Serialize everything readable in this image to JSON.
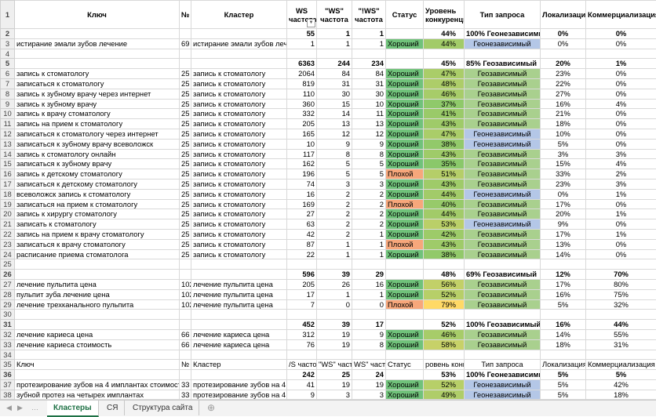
{
  "rows": [
    {
      "n": "1",
      "header": true,
      "cells": [
        "Ключ",
        "№",
        "Кластер",
        "WS частота",
        "\"WS\" частота",
        "\"!WS\" частота",
        "Статус",
        "Уровень конкуренции",
        "Тип запроса",
        "Локализация",
        "Коммерциализация"
      ]
    },
    {
      "n": "2",
      "bold": true,
      "cells": [
        null,
        null,
        null,
        55,
        1,
        1,
        null,
        "44%",
        "100% Геонезависимый",
        "0%",
        "0%"
      ]
    },
    {
      "n": "3",
      "cells": [
        "истирание эмали зубов лечение",
        69,
        "истирание эмали зубов лече",
        1,
        1,
        1,
        "Хороший",
        "44%",
        "Геонезависимый",
        "0%",
        "0%"
      ]
    },
    {
      "n": "4"
    },
    {
      "n": "5",
      "bold": true,
      "cells": [
        null,
        null,
        null,
        6363,
        244,
        234,
        null,
        "45%",
        "85% Геозависимый",
        "20%",
        "1%"
      ]
    },
    {
      "n": "6",
      "cells": [
        "запись к стоматологу",
        25,
        "запись к стоматологу",
        2064,
        84,
        84,
        "Хороший",
        "47%",
        "Геозависимый",
        "23%",
        "0%"
      ]
    },
    {
      "n": "7",
      "cells": [
        "записаться к стоматологу",
        25,
        "запись к стоматологу",
        819,
        31,
        31,
        "Хороший",
        "48%",
        "Геозависимый",
        "22%",
        "0%"
      ]
    },
    {
      "n": "8",
      "cells": [
        "запись к зубному врачу через интернет",
        25,
        "запись к стоматологу",
        110,
        30,
        30,
        "Хороший",
        "46%",
        "Геозависимый",
        "27%",
        "0%"
      ]
    },
    {
      "n": "9",
      "cells": [
        "запись к зубному врачу",
        25,
        "запись к стоматологу",
        360,
        15,
        10,
        "Хороший",
        "37%",
        "Геозависимый",
        "16%",
        "4%"
      ]
    },
    {
      "n": "10",
      "cells": [
        "запись к врачу стоматологу",
        25,
        "запись к стоматологу",
        332,
        14,
        11,
        "Хороший",
        "41%",
        "Геозависимый",
        "21%",
        "0%"
      ]
    },
    {
      "n": "11",
      "cells": [
        "запись на прием к стоматологу",
        25,
        "запись к стоматологу",
        205,
        13,
        13,
        "Хороший",
        "43%",
        "Геозависимый",
        "18%",
        "0%"
      ]
    },
    {
      "n": "12",
      "cells": [
        "записаться к стоматологу через интернет",
        25,
        "запись к стоматологу",
        165,
        12,
        12,
        "Хороший",
        "47%",
        "Геонезависимый",
        "10%",
        "0%"
      ]
    },
    {
      "n": "13",
      "cells": [
        "записаться к зубному врачу всеволожск",
        25,
        "запись к стоматологу",
        10,
        9,
        9,
        "Хороший",
        "38%",
        "Геонезависимый",
        "5%",
        "0%"
      ]
    },
    {
      "n": "14",
      "cells": [
        "запись к стоматологу онлайн",
        25,
        "запись к стоматологу",
        117,
        8,
        8,
        "Хороший",
        "43%",
        "Геозависимый",
        "3%",
        "3%"
      ]
    },
    {
      "n": "15",
      "cells": [
        "записаться к зубному врачу",
        25,
        "запись к стоматологу",
        162,
        5,
        5,
        "Хороший",
        "35%",
        "Геозависимый",
        "15%",
        "4%"
      ]
    },
    {
      "n": "16",
      "cells": [
        "запись к детскому стоматологу",
        25,
        "запись к стоматологу",
        196,
        5,
        5,
        "Плохой",
        "51%",
        "Геозависимый",
        "33%",
        "2%"
      ]
    },
    {
      "n": "17",
      "cells": [
        "записаться к детскому стоматологу",
        25,
        "запись к стоматологу",
        74,
        3,
        3,
        "Хороший",
        "43%",
        "Геозависимый",
        "23%",
        "3%"
      ]
    },
    {
      "n": "18",
      "cells": [
        "всеволожск запись к стоматологу",
        25,
        "запись к стоматологу",
        16,
        2,
        2,
        "Хороший",
        "44%",
        "Геонезависимый",
        "0%",
        "1%"
      ]
    },
    {
      "n": "19",
      "cells": [
        "записаться на прием к стоматологу",
        25,
        "запись к стоматологу",
        169,
        2,
        2,
        "Плохой",
        "40%",
        "Геозависимый",
        "17%",
        "0%"
      ]
    },
    {
      "n": "20",
      "cells": [
        "запись к хирургу стоматологу",
        25,
        "запись к стоматологу",
        27,
        2,
        2,
        "Хороший",
        "44%",
        "Геозависимый",
        "20%",
        "1%"
      ]
    },
    {
      "n": "21",
      "cells": [
        "записать к стоматологу",
        25,
        "запись к стоматологу",
        63,
        2,
        2,
        "Хороший",
        "53%",
        "Геонезависимый",
        "9%",
        "0%"
      ]
    },
    {
      "n": "22",
      "cells": [
        "запись на прием к врачу стоматологу",
        25,
        "запись к стоматологу",
        42,
        2,
        1,
        "Хороший",
        "42%",
        "Геозависимый",
        "17%",
        "1%"
      ]
    },
    {
      "n": "23",
      "cells": [
        "записаться к врачу стоматологу",
        25,
        "запись к стоматологу",
        87,
        1,
        1,
        "Плохой",
        "43%",
        "Геозависимый",
        "13%",
        "0%"
      ]
    },
    {
      "n": "24",
      "cells": [
        "расписание приема стоматолога",
        25,
        "запись к стоматологу",
        22,
        1,
        1,
        "Хороший",
        "38%",
        "Геозависимый",
        "14%",
        "0%"
      ]
    },
    {
      "n": "25"
    },
    {
      "n": "26",
      "bold": true,
      "cells": [
        null,
        null,
        null,
        596,
        39,
        29,
        null,
        "48%",
        "69% Геозависимый",
        "12%",
        "70%"
      ]
    },
    {
      "n": "27",
      "cells": [
        "лечение пульпита цена",
        102,
        "лечение пульпита цена",
        205,
        26,
        16,
        "Хороший",
        "56%",
        "Геозависимый",
        "17%",
        "80%"
      ]
    },
    {
      "n": "28",
      "cells": [
        "пульпит зуба лечение цена",
        102,
        "лечение пульпита цена",
        17,
        1,
        1,
        "Хороший",
        "52%",
        "Геозависимый",
        "16%",
        "75%"
      ]
    },
    {
      "n": "29",
      "cells": [
        "лечение трехканального пульпита",
        102,
        "лечение пульпита цена",
        7,
        0,
        0,
        "Плохой",
        "79%",
        "Геозависимый",
        "5%",
        "32%"
      ]
    },
    {
      "n": "30"
    },
    {
      "n": "31",
      "bold": true,
      "cells": [
        null,
        null,
        null,
        452,
        39,
        17,
        null,
        "52%",
        "100% Геозависимый",
        "16%",
        "44%"
      ]
    },
    {
      "n": "32",
      "cells": [
        "лечение кариеса цена",
        66,
        "лечение кариеса цена",
        312,
        19,
        9,
        "Хороший",
        "46%",
        "Геозависимый",
        "14%",
        "55%"
      ]
    },
    {
      "n": "33",
      "cells": [
        "лечение кариеса стоимость",
        66,
        "лечение кариеса цена",
        76,
        19,
        8,
        "Хороший",
        "58%",
        "Геозависимый",
        "18%",
        "31%"
      ]
    },
    {
      "n": "34"
    },
    {
      "n": "35",
      "cells": [
        "Ключ",
        "№",
        "Кластер",
        "/S частота",
        "\"WS\" частота",
        "WS\" частота",
        "Статус",
        "ровень конкурен",
        "Тип запроса",
        "Локализация",
        "Коммерциализация"
      ]
    },
    {
      "n": "36",
      "bold": true,
      "cells": [
        null,
        null,
        null,
        242,
        25,
        24,
        null,
        "53%",
        "100% Геонезависимый",
        "5%",
        "5%"
      ]
    },
    {
      "n": "37",
      "cells": [
        "протезирование зубов на 4 имплантах стоимость",
        33,
        "протезирование зубов на 4 и",
        41,
        19,
        19,
        "Хороший",
        "52%",
        "Геонезависимый",
        "5%",
        "42%"
      ]
    },
    {
      "n": "38",
      "cells": [
        "зубной протез на четырех имплантах",
        33,
        "протезирование зубов на 4 и",
        9,
        3,
        3,
        "Хороший",
        "49%",
        "Геонезависимый",
        "5%",
        "18%"
      ]
    }
  ],
  "tabs": [
    "Кластеры",
    "СЯ",
    "Структура сайта"
  ],
  "active_tab": 0
}
